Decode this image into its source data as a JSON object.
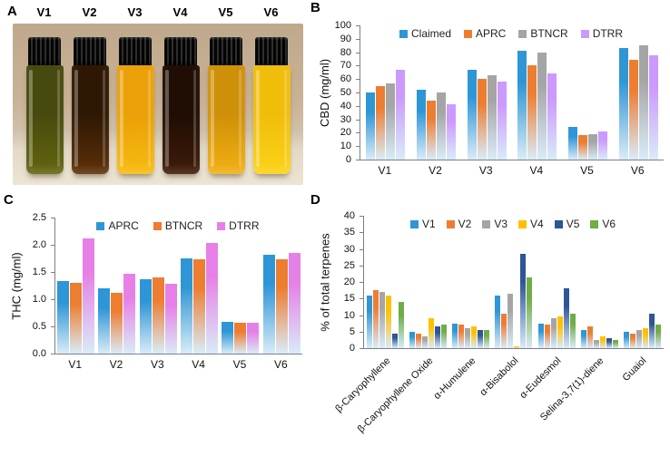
{
  "panels": {
    "a": {
      "label": "A",
      "vials": [
        {
          "name": "V1",
          "liquid_top": "#474a0e",
          "liquid_bottom": "#63650f"
        },
        {
          "name": "V2",
          "liquid_top": "#2e1804",
          "liquid_bottom": "#5d3007"
        },
        {
          "name": "V3",
          "liquid_top": "#eaa008",
          "liquid_bottom": "#f8bb10"
        },
        {
          "name": "V4",
          "liquid_top": "#200d04",
          "liquid_bottom": "#3f1c08"
        },
        {
          "name": "V5",
          "liquid_top": "#cf9009",
          "liquid_bottom": "#f2b013"
        },
        {
          "name": "V6",
          "liquid_top": "#f0bd0b",
          "liquid_bottom": "#fbd318"
        }
      ]
    },
    "b": {
      "label": "B"
    },
    "c": {
      "label": "C"
    },
    "d": {
      "label": "D"
    }
  },
  "chart_data": [
    {
      "id": "B",
      "type": "bar",
      "title": "",
      "ylabel": "CBD (mg/ml)",
      "ylim": [
        0,
        100
      ],
      "ytick_step": 10,
      "grid": false,
      "legend_position": "top",
      "categories": [
        "V1",
        "V2",
        "V3",
        "V4",
        "V5",
        "V6"
      ],
      "series": [
        {
          "name": "Claimed",
          "color": "#2e96d6",
          "values": [
            50,
            52,
            67,
            81,
            24,
            83
          ]
        },
        {
          "name": "APRC",
          "color": "#ed7d31",
          "values": [
            55,
            44,
            60,
            70,
            18,
            74
          ]
        },
        {
          "name": "BTNCR",
          "color": "#a5a5a5",
          "values": [
            57,
            50,
            63,
            80,
            19,
            85
          ]
        },
        {
          "name": "DTRR",
          "color": "#cc99ff",
          "values": [
            67,
            41,
            58,
            64,
            21,
            78
          ]
        }
      ]
    },
    {
      "id": "C",
      "type": "bar",
      "title": "",
      "ylabel": "THC (mg/ml)",
      "ylim": [
        0,
        2.5
      ],
      "ytick_step": 0.5,
      "grid": false,
      "legend_position": "top",
      "categories": [
        "V1",
        "V2",
        "V3",
        "V4",
        "V5",
        "V6"
      ],
      "series": [
        {
          "name": "APRC",
          "color": "#2e96d6",
          "values": [
            1.33,
            1.2,
            1.37,
            1.75,
            0.58,
            1.82
          ]
        },
        {
          "name": "BTNCR",
          "color": "#ed7d31",
          "values": [
            1.3,
            1.12,
            1.4,
            1.74,
            0.57,
            1.74
          ]
        },
        {
          "name": "DTRR",
          "color": "#e680e6",
          "values": [
            2.12,
            1.47,
            1.28,
            2.03,
            0.57,
            1.85
          ]
        }
      ]
    },
    {
      "id": "D",
      "type": "bar",
      "title": "",
      "ylabel": "% of total terpenes",
      "ylim": [
        0,
        40
      ],
      "ytick_step": 5,
      "grid": false,
      "legend_position": "top",
      "categories": [
        "β-Caryophyllene",
        "β-Caryophyllene Oxide",
        "α-Humulene",
        "α-Bisabolol",
        "α-Eudesmol",
        "Selina-3,7(1)-diene",
        "Guaiol"
      ],
      "series": [
        {
          "name": "V1",
          "color": "#2e96d6",
          "values": [
            16.0,
            5.0,
            7.5,
            16.0,
            7.5,
            5.5,
            5.0
          ]
        },
        {
          "name": "V2",
          "color": "#ed7d31",
          "values": [
            17.5,
            4.5,
            7.0,
            10.5,
            7.0,
            6.5,
            4.5
          ]
        },
        {
          "name": "V3",
          "color": "#a5a5a5",
          "values": [
            17.0,
            3.5,
            6.0,
            16.5,
            9.0,
            2.5,
            5.5
          ]
        },
        {
          "name": "V4",
          "color": "#ffc000",
          "values": [
            16.0,
            9.0,
            6.5,
            0.5,
            9.5,
            3.5,
            6.0
          ]
        },
        {
          "name": "V5",
          "color": "#2f5597",
          "values": [
            4.5,
            6.5,
            5.5,
            28.5,
            18.0,
            3.0,
            10.5
          ]
        },
        {
          "name": "V6",
          "color": "#70ad47",
          "values": [
            14.0,
            7.0,
            5.5,
            21.5,
            10.5,
            2.5,
            7.0
          ]
        }
      ]
    }
  ]
}
